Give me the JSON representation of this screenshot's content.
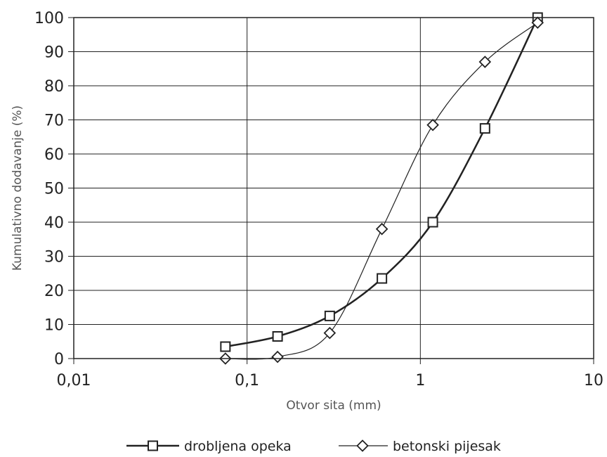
{
  "chart_data": {
    "type": "line",
    "title": "",
    "xlabel": "Otvor sita (mm)",
    "ylabel": "Kumulativno dodavanje (%)",
    "x_scale": "log",
    "xlim": [
      0.01,
      10
    ],
    "ylim": [
      0,
      100
    ],
    "x_ticks": [
      0.01,
      0.1,
      1,
      10
    ],
    "x_tick_labels": [
      "0,01",
      "0,1",
      "1",
      "10"
    ],
    "y_ticks": [
      0,
      10,
      20,
      30,
      40,
      50,
      60,
      70,
      80,
      90,
      100
    ],
    "y_tick_labels": [
      "0",
      "10",
      "20",
      "30",
      "40",
      "50",
      "60",
      "70",
      "80",
      "90",
      "100"
    ],
    "grid": true,
    "legend_position": "bottom",
    "series": [
      {
        "name": "drobljena opeka",
        "marker": "square",
        "line": "thick",
        "x": [
          0.075,
          0.15,
          0.3,
          0.6,
          1.18,
          2.36,
          4.75
        ],
        "y": [
          3.5,
          6.5,
          12.5,
          23.5,
          40,
          67.5,
          100
        ]
      },
      {
        "name": "betonski pijesak",
        "marker": "diamond",
        "line": "thin",
        "x": [
          0.075,
          0.15,
          0.3,
          0.6,
          1.18,
          2.36,
          4.75
        ],
        "y": [
          0,
          0.5,
          7.5,
          38,
          68.5,
          87,
          98.5
        ]
      }
    ]
  }
}
